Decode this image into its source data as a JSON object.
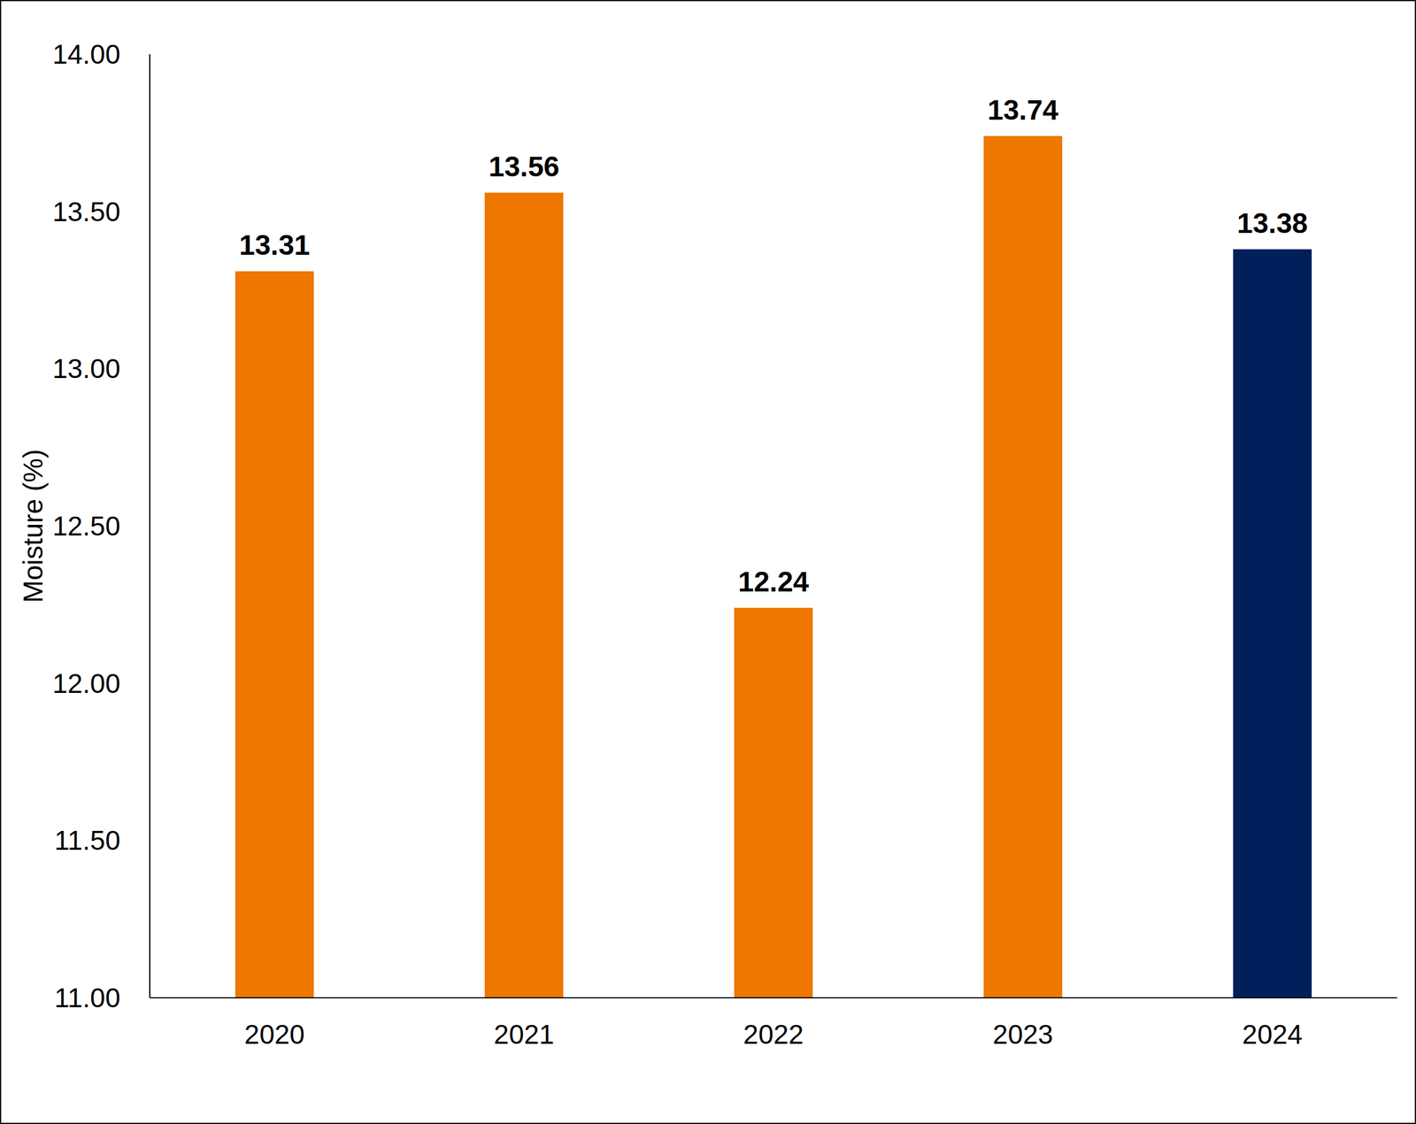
{
  "chart_data": {
    "type": "bar",
    "y_label": "Moisture (%)",
    "categories": [
      "2020",
      "2021",
      "2022",
      "2023",
      "2024"
    ],
    "values": [
      13.31,
      13.56,
      12.24,
      13.74,
      13.38
    ],
    "colors": [
      "#ee7700",
      "#ee7700",
      "#ee7700",
      "#ee7700",
      "#001f5b"
    ],
    "ylim": [
      11,
      14
    ],
    "yticks": [
      {
        "value": 11,
        "label": "11.00"
      },
      {
        "value": 11.5,
        "label": "11.50"
      },
      {
        "value": 12,
        "label": "12.00"
      },
      {
        "value": 12.5,
        "label": "12.50"
      },
      {
        "value": 13,
        "label": "13.00"
      },
      {
        "value": 13.5,
        "label": "13.50"
      },
      {
        "value": 14,
        "label": "14.00"
      }
    ],
    "grid": false,
    "data_labels": true
  }
}
